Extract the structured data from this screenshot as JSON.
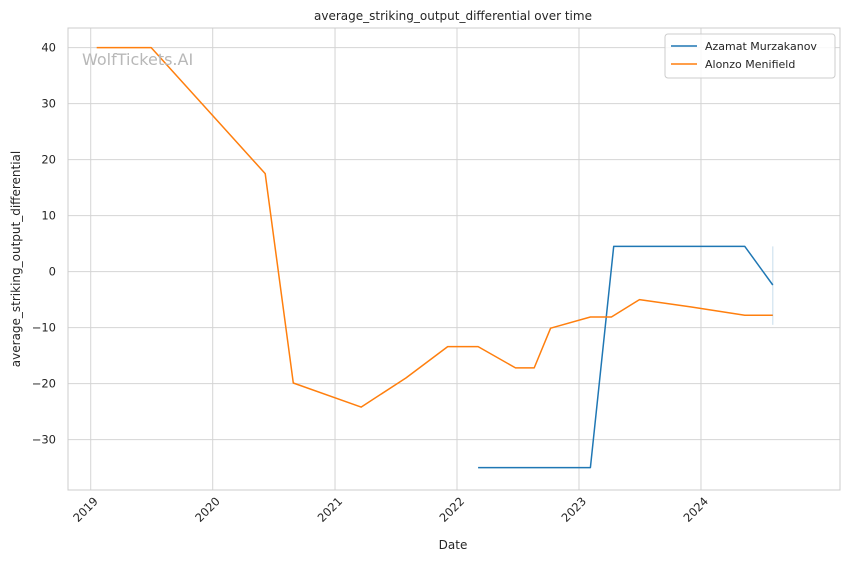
{
  "chart_data": {
    "type": "line",
    "title": "average_striking_output_differential over time",
    "xlabel": "Date",
    "ylabel": "average_striking_output_differential",
    "x_ticks": [
      "2019",
      "2020",
      "2021",
      "2022",
      "2023",
      "2024"
    ],
    "y_ticks": [
      -30,
      -20,
      -10,
      0,
      10,
      20,
      30,
      40
    ],
    "xlim": [
      "2018-10-25",
      "2025-02-20"
    ],
    "ylim": [
      -39,
      43.5
    ],
    "grid": true,
    "legend_position": "top-right",
    "watermark": "WolfTickets.AI",
    "series": [
      {
        "name": "Azamat Murzakanov",
        "color": "#1f77b4",
        "points": [
          [
            "2022-03-05",
            -35.0
          ],
          [
            "2023-02-04",
            -35.0
          ],
          [
            "2023-04-15",
            4.5
          ],
          [
            "2024-05-11",
            4.5
          ],
          [
            "2024-08-03",
            -2.4
          ]
        ]
      },
      {
        "name": "Alonzo Menifield",
        "color": "#ff7f0e",
        "points": [
          [
            "2019-01-19",
            40.0
          ],
          [
            "2019-07-01",
            40.0
          ],
          [
            "2020-06-06",
            17.5
          ],
          [
            "2020-08-29",
            -19.9
          ],
          [
            "2021-03-20",
            -24.2
          ],
          [
            "2021-08-01",
            -19.0
          ],
          [
            "2021-12-04",
            -13.4
          ],
          [
            "2022-03-05",
            -13.4
          ],
          [
            "2022-06-25",
            -17.2
          ],
          [
            "2022-08-20",
            -17.2
          ],
          [
            "2022-10-08",
            -10.1
          ],
          [
            "2023-02-04",
            -8.1
          ],
          [
            "2023-04-08",
            -8.1
          ],
          [
            "2023-07-01",
            -5.0
          ],
          [
            "2023-12-01",
            -6.3
          ],
          [
            "2024-05-11",
            -7.8
          ],
          [
            "2024-08-03",
            -7.8
          ]
        ]
      }
    ]
  }
}
